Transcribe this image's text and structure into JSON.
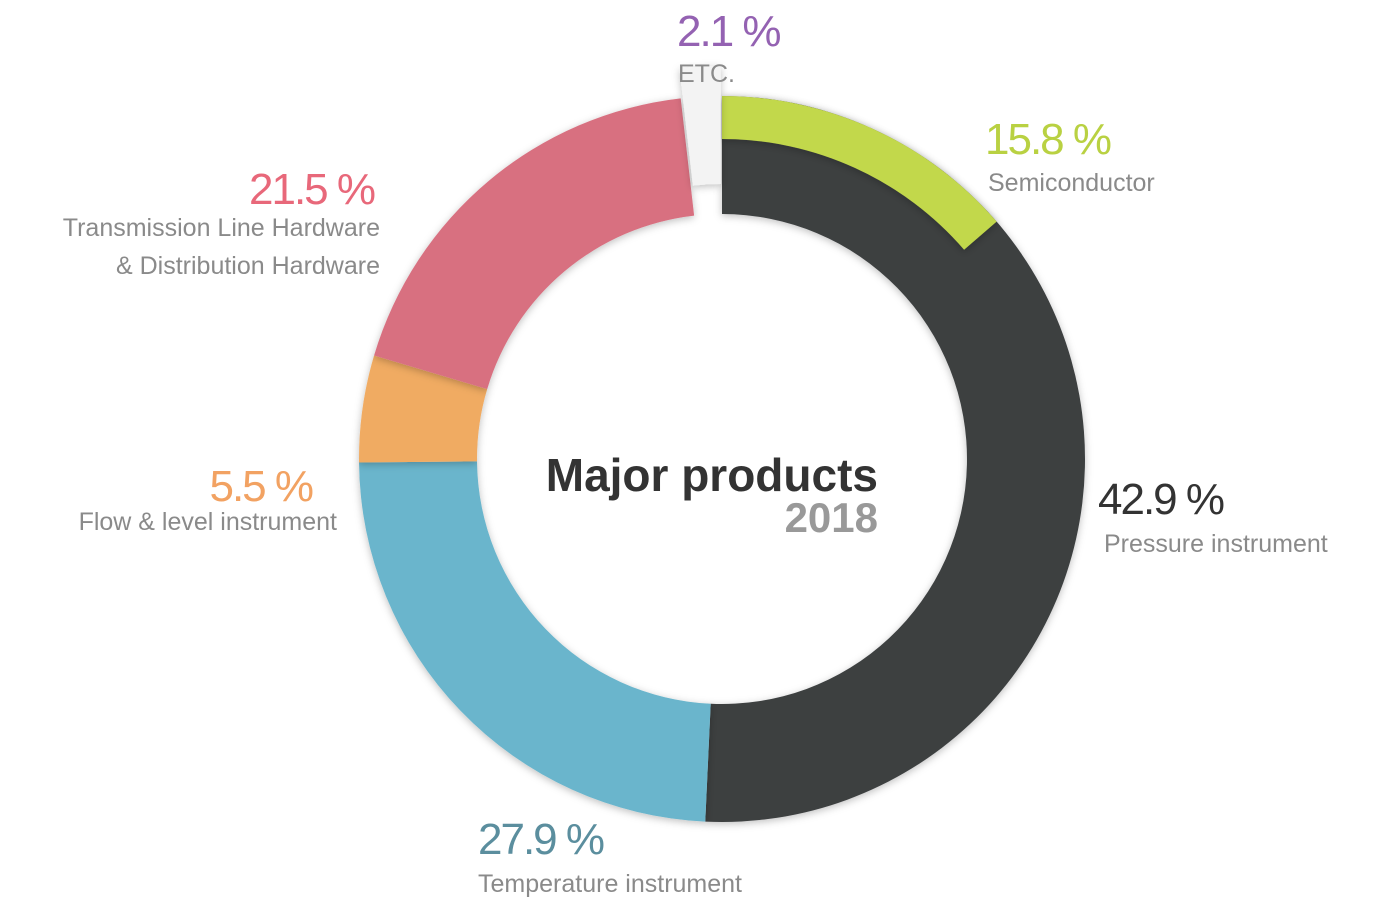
{
  "chart_data": {
    "type": "donut",
    "title": "Major products",
    "subtitle": "2018",
    "categories": [
      "Semiconductor",
      "Pressure instrument",
      "Temperature instrument",
      "Flow & level instrument",
      "Transmission Line Hardware\n& Distribution Hardware",
      "ETC."
    ],
    "values": [
      15.8,
      42.9,
      27.9,
      5.5,
      21.5,
      2.1
    ],
    "value_labels": [
      "15.8 %",
      "42.9 %",
      "27.9 %",
      "5.5 %",
      "21.5 %",
      "2.1 %"
    ],
    "colors": [
      "#c2d84c",
      "#3c3f40",
      "#6ab5cc",
      "#f0ab62",
      "#d86f80",
      "#f3f3f3"
    ],
    "label_colors": [
      "#b9d142",
      "#333333",
      "#5b8e9e",
      "#f2a262",
      "#e8687a",
      "#9462b2"
    ]
  }
}
